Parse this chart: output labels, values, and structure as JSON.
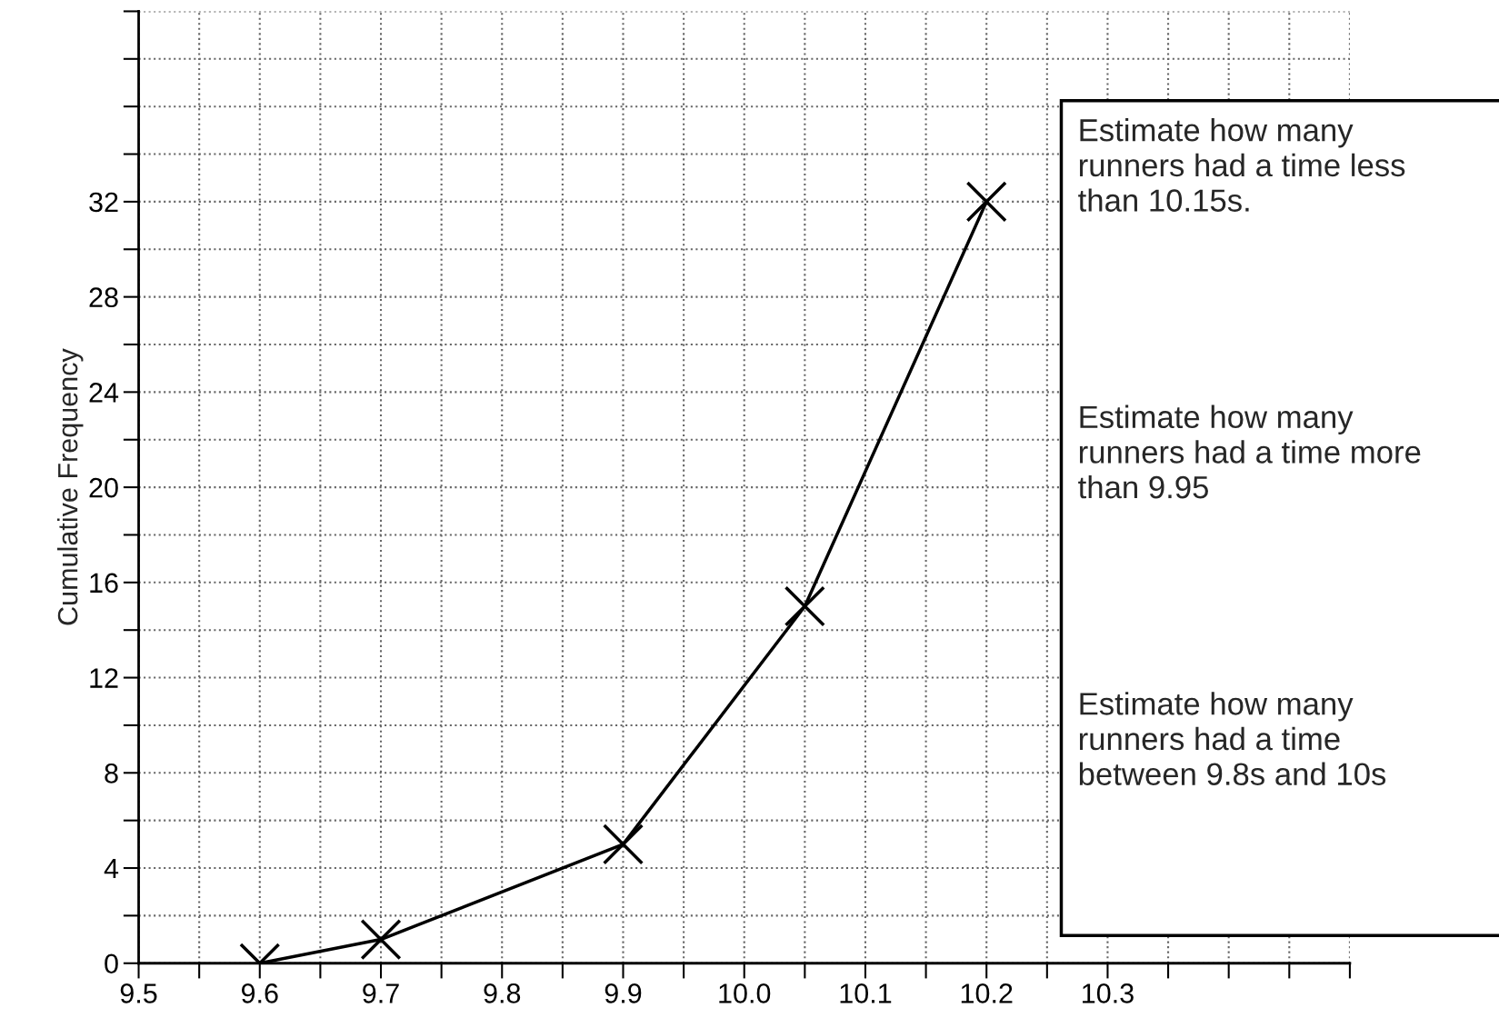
{
  "chart_data": {
    "type": "line",
    "ylabel": "Cumulative Frequency",
    "x": [
      9.6,
      9.7,
      9.9,
      10.05,
      10.2
    ],
    "series": [
      {
        "color": "#000000",
        "values": [
          0,
          1,
          5,
          15,
          32
        ]
      }
    ],
    "marker": "cross",
    "line_style": "solid",
    "grid": true,
    "xlim": [
      9.5,
      10.5
    ],
    "xticks": [
      9.5,
      {
        "value": 9.55,
        "label": null
      },
      9.6,
      {
        "value": 9.65,
        "label": null
      },
      9.7,
      {
        "value": 9.75,
        "label": null
      },
      9.8,
      {
        "value": 9.85,
        "label": null
      },
      9.9,
      {
        "value": 9.95,
        "label": null
      },
      {
        "value": 10.0,
        "label": "10.0"
      },
      {
        "value": 10.05,
        "label": null
      },
      10.1,
      {
        "value": 10.15,
        "label": null
      },
      10.2,
      {
        "value": 10.25,
        "label": null
      },
      10.3,
      {
        "value": 10.35,
        "label": null
      },
      {
        "value": 10.4,
        "label": null
      },
      {
        "value": 10.45,
        "label": null
      },
      {
        "value": 10.5,
        "label": null
      }
    ],
    "ylim": [
      0,
      40
    ],
    "yticks": [
      0,
      {
        "value": 2,
        "label": null
      },
      4,
      {
        "value": 6,
        "label": null
      },
      8,
      {
        "value": 10,
        "label": null
      },
      12,
      {
        "value": 14,
        "label": null
      },
      16,
      {
        "value": 18,
        "label": null
      },
      20,
      {
        "value": 22,
        "label": null
      },
      24,
      {
        "value": 26,
        "label": null
      },
      28,
      {
        "value": 30,
        "label": null
      },
      32,
      {
        "value": 34,
        "label": null
      },
      {
        "value": 36,
        "label": null
      },
      {
        "value": 38,
        "label": null
      },
      {
        "value": 40,
        "label": null
      }
    ],
    "annotations": [
      "Estimate how many\nrunners had a time less\nthan 10.15s.",
      "Estimate how many\nrunners had a time more\nthan 9.95",
      "Estimate how many\nrunners had a time\nbetween 9.8s and 10s"
    ]
  }
}
